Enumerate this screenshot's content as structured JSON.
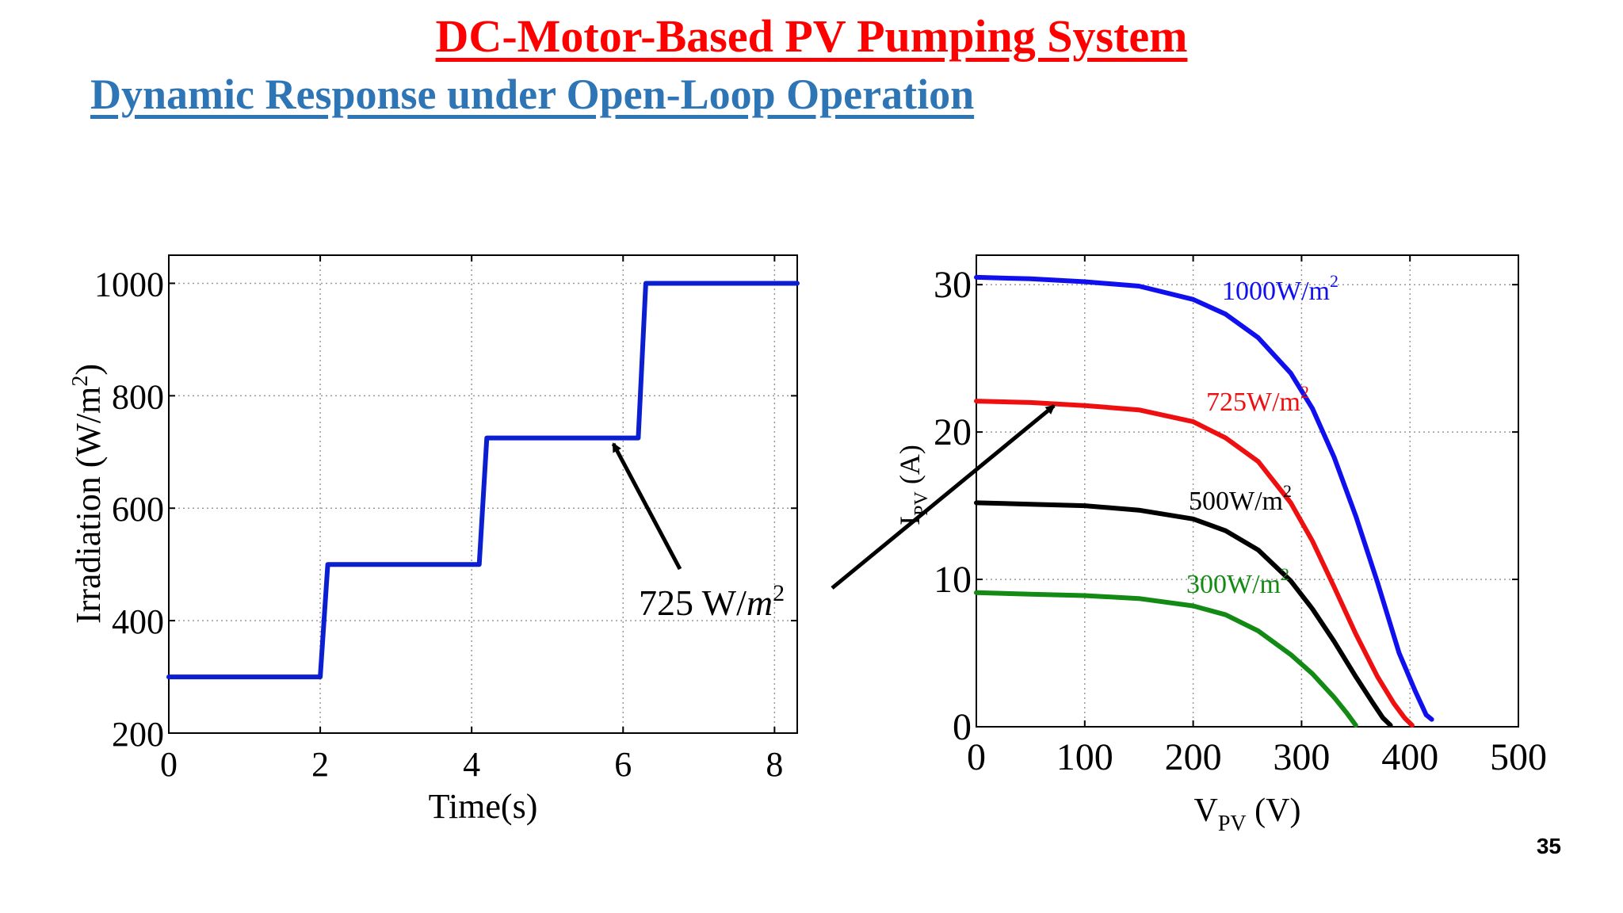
{
  "slide": {
    "title": "DC-Motor-Based PV Pumping System",
    "subtitle": "Dynamic Response under Open-Loop Operation",
    "page_number": "35",
    "title_color": "#ff0000",
    "subtitle_color": "#2e75b6"
  },
  "annotation": {
    "text_value": "725 W/",
    "text_unit": "m",
    "text_exp": "2"
  },
  "chart_data": [
    {
      "type": "line",
      "xlabel": "Time(s)",
      "ylabel_main": "Irradiation (W/m",
      "ylabel_exp": "2",
      "ylabel_close": ")",
      "xlim": [
        0,
        8.3
      ],
      "ylim": [
        200,
        1050
      ],
      "xticks": [
        0,
        2,
        4,
        6,
        8
      ],
      "xtick_labels": [
        "0",
        "2",
        "4",
        "6",
        "8"
      ],
      "yticks": [
        200,
        400,
        600,
        800,
        1000
      ],
      "ytick_labels": [
        "200",
        "400",
        "600",
        "800",
        "1000"
      ],
      "grid": true,
      "series": [
        {
          "color": "#0b1fd0",
          "x": [
            0,
            2.0,
            2.1,
            4.1,
            4.2,
            6.2,
            6.3,
            8.3
          ],
          "y": [
            300,
            300,
            500,
            500,
            725,
            725,
            1000,
            1000
          ]
        }
      ]
    },
    {
      "type": "line",
      "xlabel_main": "V",
      "xlabel_sub": "PV",
      "xlabel_unit": " (V)",
      "ylabel_main": "I",
      "ylabel_sub": "PV",
      "ylabel_unit": " (A)",
      "xlim": [
        0,
        500
      ],
      "ylim": [
        0,
        32
      ],
      "xticks": [
        0,
        100,
        200,
        300,
        400,
        500
      ],
      "xtick_labels": [
        "0",
        "100",
        "200",
        "300",
        "400",
        "500"
      ],
      "yticks": [
        0,
        10,
        20,
        30
      ],
      "ytick_labels": [
        "0",
        "10",
        "20",
        "30"
      ],
      "grid": true,
      "series": [
        {
          "name": "1000W/m",
          "name_exp": "2",
          "color": "#1010ee",
          "x": [
            0,
            50,
            100,
            150,
            200,
            230,
            260,
            290,
            310,
            330,
            350,
            370,
            390,
            405,
            415,
            420
          ],
          "y": [
            30.5,
            30.4,
            30.2,
            29.9,
            29.0,
            28.0,
            26.4,
            24.0,
            21.6,
            18.3,
            14.3,
            9.8,
            5.0,
            2.4,
            0.8,
            0.5
          ]
        },
        {
          "name": "725W/m",
          "name_exp": "2",
          "color": "#ee1010",
          "x": [
            0,
            50,
            100,
            150,
            200,
            230,
            260,
            290,
            310,
            330,
            350,
            370,
            385,
            395,
            402
          ],
          "y": [
            22.1,
            22.0,
            21.8,
            21.5,
            20.7,
            19.6,
            18.0,
            15.2,
            12.6,
            9.5,
            6.3,
            3.4,
            1.6,
            0.6,
            0.1
          ]
        },
        {
          "name": "500W/m",
          "name_exp": "2",
          "color": "#000000",
          "x": [
            0,
            50,
            100,
            150,
            200,
            230,
            260,
            290,
            310,
            330,
            350,
            365,
            375,
            382
          ],
          "y": [
            15.2,
            15.1,
            15.0,
            14.7,
            14.1,
            13.3,
            12.0,
            9.9,
            8.0,
            5.8,
            3.4,
            1.7,
            0.6,
            0.1
          ]
        },
        {
          "name": "300W/m",
          "name_exp": "2",
          "color": "#138a13",
          "x": [
            0,
            50,
            100,
            150,
            200,
            230,
            260,
            290,
            310,
            330,
            342,
            350
          ],
          "y": [
            9.1,
            9.0,
            8.9,
            8.7,
            8.2,
            7.6,
            6.5,
            4.9,
            3.6,
            2.0,
            0.9,
            0.1
          ]
        }
      ]
    }
  ]
}
